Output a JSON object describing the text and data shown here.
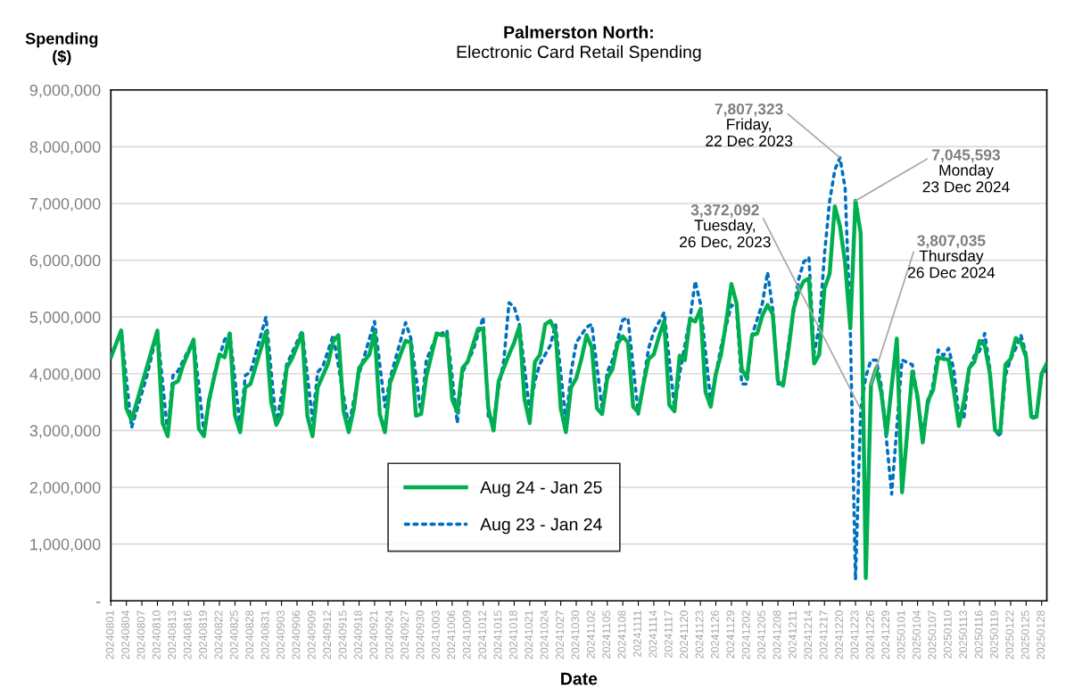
{
  "chart_data": {
    "type": "line",
    "title": "Palmerston North:",
    "subtitle": "Electronic Card Retail Spending",
    "xlabel": "Date",
    "ylabel": "Spending\n($)",
    "xlim": [
      "2024-08-01",
      "2025-01-29"
    ],
    "ylim": [
      0,
      9000000
    ],
    "yticks": [
      {
        "value": 0,
        "label": "-"
      },
      {
        "value": 1000000,
        "label": "1,000,000"
      },
      {
        "value": 2000000,
        "label": "2,000,000"
      },
      {
        "value": 3000000,
        "label": "3,000,000"
      },
      {
        "value": 4000000,
        "label": "4,000,000"
      },
      {
        "value": 5000000,
        "label": "5,000,000"
      },
      {
        "value": 6000000,
        "label": "6,000,000"
      },
      {
        "value": 7000000,
        "label": "7,000,000"
      },
      {
        "value": 8000000,
        "label": "8,000,000"
      },
      {
        "value": 9000000,
        "label": "9,000,000"
      }
    ],
    "xticks": [
      {
        "value": "2024-08-01",
        "label": "20240801"
      },
      {
        "value": "2024-08-04",
        "label": "20240804"
      },
      {
        "value": "2024-08-07",
        "label": "20240807"
      },
      {
        "value": "2024-08-10",
        "label": "20240810"
      },
      {
        "value": "2024-08-13",
        "label": "20240813"
      },
      {
        "value": "2024-08-16",
        "label": "20240816"
      },
      {
        "value": "2024-08-19",
        "label": "20240819"
      },
      {
        "value": "2024-08-22",
        "label": "20240822"
      },
      {
        "value": "2024-08-25",
        "label": "20240825"
      },
      {
        "value": "2024-08-28",
        "label": "20240828"
      },
      {
        "value": "2024-08-31",
        "label": "20240831"
      },
      {
        "value": "2024-09-03",
        "label": "20240903"
      },
      {
        "value": "2024-09-06",
        "label": "20240906"
      },
      {
        "value": "2024-09-09",
        "label": "20240909"
      },
      {
        "value": "2024-09-12",
        "label": "20240912"
      },
      {
        "value": "2024-09-15",
        "label": "20240915"
      },
      {
        "value": "2024-09-18",
        "label": "20240918"
      },
      {
        "value": "2024-09-21",
        "label": "20240921"
      },
      {
        "value": "2024-09-24",
        "label": "20240924"
      },
      {
        "value": "2024-09-27",
        "label": "20240927"
      },
      {
        "value": "2024-09-30",
        "label": "20240930"
      },
      {
        "value": "2024-10-03",
        "label": "20241003"
      },
      {
        "value": "2024-10-06",
        "label": "20241006"
      },
      {
        "value": "2024-10-09",
        "label": "20241009"
      },
      {
        "value": "2024-10-12",
        "label": "20241012"
      },
      {
        "value": "2024-10-15",
        "label": "20241015"
      },
      {
        "value": "2024-10-18",
        "label": "20241018"
      },
      {
        "value": "2024-10-21",
        "label": "20241021"
      },
      {
        "value": "2024-10-24",
        "label": "20241024"
      },
      {
        "value": "2024-10-27",
        "label": "20241027"
      },
      {
        "value": "2024-10-30",
        "label": "20241030"
      },
      {
        "value": "2024-11-02",
        "label": "20241102"
      },
      {
        "value": "2024-11-05",
        "label": "20241105"
      },
      {
        "value": "2024-11-08",
        "label": "20241108"
      },
      {
        "value": "2024-11-11",
        "label": "20241111"
      },
      {
        "value": "2024-11-14",
        "label": "20241114"
      },
      {
        "value": "2024-11-17",
        "label": "20241117"
      },
      {
        "value": "2024-11-20",
        "label": "20241120"
      },
      {
        "value": "2024-11-23",
        "label": "20241123"
      },
      {
        "value": "2024-11-26",
        "label": "20241126"
      },
      {
        "value": "2024-11-29",
        "label": "20241129"
      },
      {
        "value": "2024-12-02",
        "label": "20241202"
      },
      {
        "value": "2024-12-05",
        "label": "20241205"
      },
      {
        "value": "2024-12-08",
        "label": "20241208"
      },
      {
        "value": "2024-12-11",
        "label": "20241211"
      },
      {
        "value": "2024-12-14",
        "label": "20241214"
      },
      {
        "value": "2024-12-17",
        "label": "20241217"
      },
      {
        "value": "2024-12-20",
        "label": "20241220"
      },
      {
        "value": "2024-12-23",
        "label": "20241223"
      },
      {
        "value": "2024-12-26",
        "label": "20241226"
      },
      {
        "value": "2024-12-29",
        "label": "20241229"
      },
      {
        "value": "2025-01-01",
        "label": "20250101"
      },
      {
        "value": "2025-01-04",
        "label": "20250104"
      },
      {
        "value": "2025-01-07",
        "label": "20250107"
      },
      {
        "value": "2025-01-10",
        "label": "20250110"
      },
      {
        "value": "2025-01-13",
        "label": "20250113"
      },
      {
        "value": "2025-01-16",
        "label": "20250116"
      },
      {
        "value": "2025-01-19",
        "label": "20250119"
      },
      {
        "value": "2025-01-22",
        "label": "20250122"
      },
      {
        "value": "2025-01-25",
        "label": "20250125"
      },
      {
        "value": "2025-01-28",
        "label": "20250128"
      }
    ],
    "grid": "y",
    "legend": "bottom",
    "series": [
      {
        "name": "Aug 24 - Jan 25",
        "color": "#00b050",
        "line_style": "solid",
        "x": [
          "2024-08-01",
          "2024-08-03",
          "2024-08-04",
          "2024-08-05",
          "2024-08-10",
          "2024-08-11",
          "2024-08-12",
          "2024-08-13",
          "2024-08-14",
          "2024-08-15",
          "2024-08-17",
          "2024-08-18",
          "2024-08-19",
          "2024-08-20",
          "2024-08-22",
          "2024-08-23",
          "2024-08-24",
          "2024-08-25",
          "2024-08-26",
          "2024-08-27",
          "2024-08-28",
          "2024-08-31",
          "2024-09-01",
          "2024-09-02",
          "2024-09-03",
          "2024-09-04",
          "2024-09-05",
          "2024-09-07",
          "2024-09-08",
          "2024-09-09",
          "2024-09-10",
          "2024-09-12",
          "2024-09-13",
          "2024-09-14",
          "2024-09-15",
          "2024-09-16",
          "2024-09-17",
          "2024-09-18",
          "2024-09-20",
          "2024-09-21",
          "2024-09-22",
          "2024-09-23",
          "2024-09-24",
          "2024-09-26",
          "2024-09-27",
          "2024-09-28",
          "2024-09-29",
          "2024-09-30",
          "2024-10-01",
          "2024-10-03",
          "2024-10-04",
          "2024-10-05",
          "2024-10-06",
          "2024-10-07",
          "2024-10-08",
          "2024-10-09",
          "2024-10-11",
          "2024-10-12",
          "2024-10-13",
          "2024-10-14",
          "2024-10-15",
          "2024-10-17",
          "2024-10-18",
          "2024-10-19",
          "2024-10-20",
          "2024-10-21",
          "2024-10-22",
          "2024-10-23",
          "2024-10-24",
          "2024-10-25",
          "2024-10-26",
          "2024-10-27",
          "2024-10-28",
          "2024-10-29",
          "2024-10-30",
          "2024-10-31",
          "2024-11-01",
          "2024-11-02",
          "2024-11-03",
          "2024-11-04",
          "2024-11-05",
          "2024-11-06",
          "2024-11-07",
          "2024-11-08",
          "2024-11-09",
          "2024-11-10",
          "2024-11-11",
          "2024-11-12",
          "2024-11-13",
          "2024-11-14",
          "2024-11-15",
          "2024-11-16",
          "2024-11-17",
          "2024-11-18",
          "2024-11-19",
          "2024-11-20",
          "2024-11-21",
          "2024-11-22",
          "2024-11-23",
          "2024-11-24",
          "2024-11-25",
          "2024-11-26",
          "2024-11-27",
          "2024-11-28",
          "2024-11-29",
          "2024-11-30",
          "2024-12-01",
          "2024-12-02",
          "2024-12-03",
          "2024-12-04",
          "2024-12-05",
          "2024-12-06",
          "2024-12-07",
          "2024-12-08",
          "2024-12-09",
          "2024-12-10",
          "2024-12-11",
          "2024-12-12",
          "2024-12-13",
          "2024-12-14",
          "2024-12-15",
          "2024-12-16",
          "2024-12-17",
          "2024-12-18",
          "2024-12-19",
          "2024-12-20",
          "2024-12-21",
          "2024-12-22",
          "2024-12-23",
          "2024-12-24",
          "2024-12-25",
          "2024-12-26",
          "2024-12-27",
          "2024-12-28",
          "2024-12-29",
          "2024-12-30",
          "2024-12-31",
          "2025-01-01",
          "2025-01-02",
          "2025-01-03",
          "2025-01-04",
          "2025-01-05",
          "2025-01-06",
          "2025-01-07",
          "2025-01-08",
          "2025-01-09",
          "2025-01-10",
          "2025-01-11",
          "2025-01-12",
          "2025-01-13",
          "2025-01-14",
          "2025-01-15",
          "2025-01-16",
          "2025-01-17",
          "2025-01-18",
          "2025-01-19",
          "2025-01-20",
          "2025-01-21",
          "2025-01-22",
          "2025-01-23",
          "2025-01-24",
          "2025-01-25",
          "2025-01-26",
          "2025-01-27",
          "2025-01-28",
          "2025-01-29"
        ],
        "values": [
          4290000,
          4760000,
          3390000,
          3180000,
          4760000,
          3130000,
          2900000,
          3820000,
          3870000,
          4160000,
          4600000,
          3030000,
          2900000,
          3550000,
          4340000,
          4290000,
          4710000,
          3260000,
          2970000,
          3760000,
          3820000,
          4740000,
          3500000,
          3100000,
          3290000,
          4100000,
          4260000,
          4710000,
          3260000,
          2900000,
          3760000,
          4180000,
          4580000,
          4680000,
          3340000,
          2970000,
          3390000,
          4100000,
          4340000,
          4740000,
          3290000,
          2970000,
          3840000,
          4340000,
          4580000,
          4550000,
          3260000,
          3290000,
          3950000,
          4710000,
          4680000,
          4680000,
          3550000,
          3320000,
          4100000,
          4210000,
          4790000,
          4790000,
          3390000,
          3000000,
          3870000,
          4340000,
          4550000,
          4830000,
          3550000,
          3130000,
          4210000,
          4340000,
          4870000,
          4930000,
          4740000,
          3390000,
          2970000,
          3760000,
          3920000,
          4260000,
          4680000,
          4470000,
          3390000,
          3290000,
          3920000,
          4080000,
          4530000,
          4660000,
          4550000,
          3420000,
          3320000,
          3820000,
          4260000,
          4340000,
          4660000,
          4930000,
          3450000,
          3340000,
          4320000,
          4240000,
          4970000,
          4920000,
          5130000,
          3680000,
          3420000,
          4000000,
          4340000,
          4920000,
          5580000,
          5240000,
          4080000,
          3920000,
          4680000,
          4710000,
          5030000,
          5210000,
          5050000,
          3870000,
          3790000,
          4390000,
          5130000,
          5450000,
          5630000,
          5680000,
          4180000,
          4340000,
          5500000,
          5760000,
          6950000,
          6600000,
          5950000,
          4800000,
          7045593,
          6480000,
          400000,
          3807035,
          4100000,
          3660000,
          2930000,
          3780000,
          4620000,
          1910000,
          2960000,
          4040000,
          3600000,
          2790000,
          3530000,
          3710000,
          4290000,
          4260000,
          4250000,
          3710000,
          3080000,
          3530000,
          4100000,
          4210000,
          4580000,
          4500000,
          4000000,
          3000000,
          2970000,
          4160000,
          4260000,
          4630000,
          4550000,
          4290000,
          3240000,
          3240000,
          4000000,
          4180000
        ]
      },
      {
        "name": "Aug 23 - Jan 24",
        "color": "#0070c0",
        "line_style": "dotted",
        "x": [
          "2024-08-01",
          "2024-08-03",
          "2024-08-05",
          "2024-08-08",
          "2024-08-10",
          "2024-08-12",
          "2024-08-13",
          "2024-08-14",
          "2024-08-17",
          "2024-08-19",
          "2024-08-21",
          "2024-08-23",
          "2024-08-24",
          "2024-08-26",
          "2024-08-27",
          "2024-08-28",
          "2024-08-31",
          "2024-09-02",
          "2024-09-04",
          "2024-09-07",
          "2024-09-09",
          "2024-09-10",
          "2024-09-11",
          "2024-09-13",
          "2024-09-16",
          "2024-09-18",
          "2024-09-21",
          "2024-09-23",
          "2024-09-24",
          "2024-09-27",
          "2024-09-28",
          "2024-09-30",
          "2024-10-01",
          "2024-10-03",
          "2024-10-05",
          "2024-10-07",
          "2024-10-08",
          "2024-10-10",
          "2024-10-12",
          "2024-10-13",
          "2024-10-14",
          "2024-10-15",
          "2024-10-16",
          "2024-10-17",
          "2024-10-18",
          "2024-10-19",
          "2024-10-21",
          "2024-10-22",
          "2024-10-23",
          "2024-10-25",
          "2024-10-26",
          "2024-10-28",
          "2024-10-29",
          "2024-10-30",
          "2024-11-01",
          "2024-11-02",
          "2024-11-04",
          "2024-11-05",
          "2024-11-06",
          "2024-11-08",
          "2024-11-09",
          "2024-11-11",
          "2024-11-13",
          "2024-11-14",
          "2024-11-16",
          "2024-11-18",
          "2024-11-19",
          "2024-11-20",
          "2024-11-21",
          "2024-11-22",
          "2024-11-23",
          "2024-11-25",
          "2024-11-27",
          "2024-11-29",
          "2024-11-30",
          "2024-12-01",
          "2024-12-02",
          "2024-12-03",
          "2024-12-05",
          "2024-12-06",
          "2024-12-07",
          "2024-12-08",
          "2024-12-09",
          "2024-12-10",
          "2024-12-12",
          "2024-12-13",
          "2024-12-14",
          "2024-12-15",
          "2024-12-16",
          "2024-12-17",
          "2024-12-18",
          "2024-12-19",
          "2024-12-20",
          "2024-12-21",
          "2024-12-22",
          "2024-12-23",
          "2024-12-24",
          "2024-12-25",
          "2024-12-26",
          "2024-12-27",
          "2024-12-28",
          "2024-12-30",
          "2025-01-01",
          "2025-01-03",
          "2025-01-05",
          "2025-01-06",
          "2025-01-07",
          "2025-01-08",
          "2025-01-09",
          "2025-01-10",
          "2025-01-11",
          "2025-01-12",
          "2025-01-13",
          "2025-01-14",
          "2025-01-15",
          "2025-01-16",
          "2025-01-17",
          "2025-01-18",
          "2025-01-19",
          "2025-01-20",
          "2025-01-21",
          "2025-01-22",
          "2025-01-23",
          "2025-01-24",
          "2025-01-25",
          "2025-01-26",
          "2025-01-27",
          "2025-01-28",
          "2025-01-29"
        ],
        "values": [
          4290000,
          4770000,
          3050000,
          3970000,
          4740000,
          2950000,
          3970000,
          4050000,
          4600000,
          2970000,
          4000000,
          4600000,
          4710000,
          3080000,
          3970000,
          4030000,
          5000000,
          3100000,
          4160000,
          4760000,
          3180000,
          4030000,
          4130000,
          4680000,
          3080000,
          4000000,
          4920000,
          3420000,
          3920000,
          4900000,
          4630000,
          3290000,
          4240000,
          4660000,
          4760000,
          3130000,
          4030000,
          4400000,
          5000000,
          3240000,
          3180000,
          3760000,
          4240000,
          5250000,
          5180000,
          4870000,
          3340000,
          3870000,
          4180000,
          4500000,
          4870000,
          3160000,
          4030000,
          4550000,
          4820000,
          4870000,
          3390000,
          4030000,
          4240000,
          4950000,
          4980000,
          3290000,
          4450000,
          4740000,
          5080000,
          3400000,
          4000000,
          4500000,
          4970000,
          5630000,
          5240000,
          3530000,
          4470000,
          5210000,
          5160000,
          3820000,
          3820000,
          4680000,
          5240000,
          5790000,
          5130000,
          3820000,
          3820000,
          4500000,
          5660000,
          5970000,
          6050000,
          4360000,
          4830000,
          6100000,
          7040000,
          7590000,
          7807323,
          7270000,
          4800000,
          370000,
          3372092,
          3950000,
          4240000,
          4240000,
          3780000,
          1880000,
          4240000,
          4160000,
          2950000,
          3450000,
          3820000,
          4420000,
          4320000,
          4450000,
          4080000,
          3240000,
          3240000,
          4080000,
          4320000,
          4400000,
          4710000,
          4080000,
          3000000,
          2890000,
          3970000,
          4260000,
          4450000,
          4680000,
          4340000,
          3210000,
          3240000,
          3970000,
          4080000
        ]
      }
    ],
    "annotations": [
      {
        "text": "7,807,323\nFriday,\n22 Dec 2023",
        "x": "2024-12-20",
        "y": 7807323
      },
      {
        "text": "7,045,593\nMonday\n23 Dec 2024",
        "x": "2024-12-23",
        "y": 7045593
      },
      {
        "text": "3,372,092\nTuesday,\n26 Dec, 2023",
        "x": "2024-12-24",
        "y": 3372092
      },
      {
        "text": "3,807,035\nThursday\n26 Dec 2024",
        "x": "2024-12-26",
        "y": 3807035
      }
    ]
  }
}
